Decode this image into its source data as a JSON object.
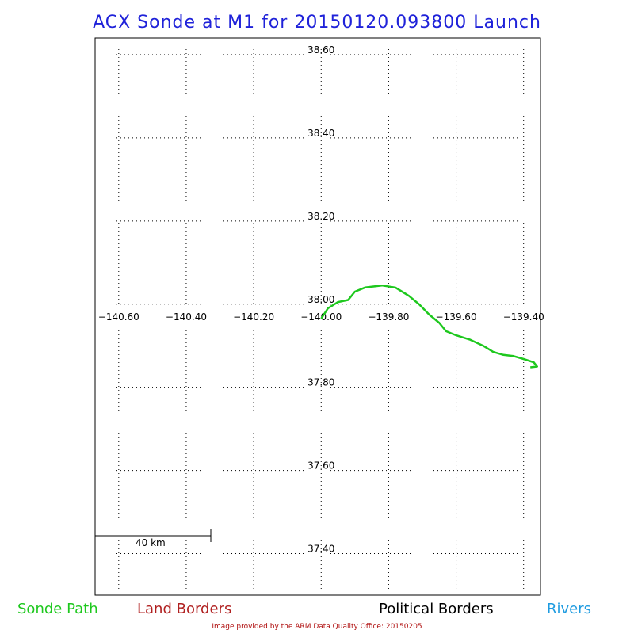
{
  "title": "ACX Sonde at M1 for 20150120.093800 Launch",
  "map": {
    "lat_labels": [
      "38.60",
      "38.40",
      "38.20",
      "38.00",
      "37.80",
      "37.60",
      "37.40"
    ],
    "lon_labels": [
      "−140.60",
      "−140.40",
      "−140.20",
      "−140.00",
      "−139.80",
      "−139.60",
      "−139.40"
    ],
    "lat_values": [
      38.6,
      38.4,
      38.2,
      38.0,
      37.8,
      37.6,
      37.4
    ],
    "lon_values": [
      -140.6,
      -140.4,
      -140.2,
      -140.0,
      -139.8,
      -139.6,
      -139.4
    ],
    "extent": {
      "lon_min": -140.67,
      "lon_max": -139.35,
      "lat_min": 37.3,
      "lat_max": 38.64
    },
    "scale_bar_label": "40 km",
    "sonde_path": [
      [
        -140.0,
        37.965
      ],
      [
        -139.98,
        37.99
      ],
      [
        -139.95,
        38.005
      ],
      [
        -139.92,
        38.01
      ],
      [
        -139.9,
        38.03
      ],
      [
        -139.87,
        38.04
      ],
      [
        -139.82,
        38.045
      ],
      [
        -139.78,
        38.04
      ],
      [
        -139.74,
        38.02
      ],
      [
        -139.71,
        38.0
      ],
      [
        -139.68,
        37.975
      ],
      [
        -139.65,
        37.955
      ],
      [
        -139.63,
        37.935
      ],
      [
        -139.6,
        37.925
      ],
      [
        -139.56,
        37.915
      ],
      [
        -139.52,
        37.9
      ],
      [
        -139.49,
        37.885
      ],
      [
        -139.46,
        37.878
      ],
      [
        -139.43,
        37.875
      ],
      [
        -139.4,
        37.868
      ],
      [
        -139.37,
        37.86
      ],
      [
        -139.36,
        37.85
      ],
      [
        -139.38,
        37.848
      ]
    ]
  },
  "legend": {
    "sonde_path": "Sonde Path",
    "land_borders": "Land Borders",
    "political_borders": "Political Borders",
    "rivers": "Rivers"
  },
  "colors": {
    "title": "#1f22d9",
    "sonde_path": "#1ec81e",
    "land_borders": "#b02020",
    "political_borders": "#000000",
    "rivers": "#1e9be0",
    "credit": "#b01010"
  },
  "credit": "Image provided by the ARM Data Quality Office: 20150205"
}
